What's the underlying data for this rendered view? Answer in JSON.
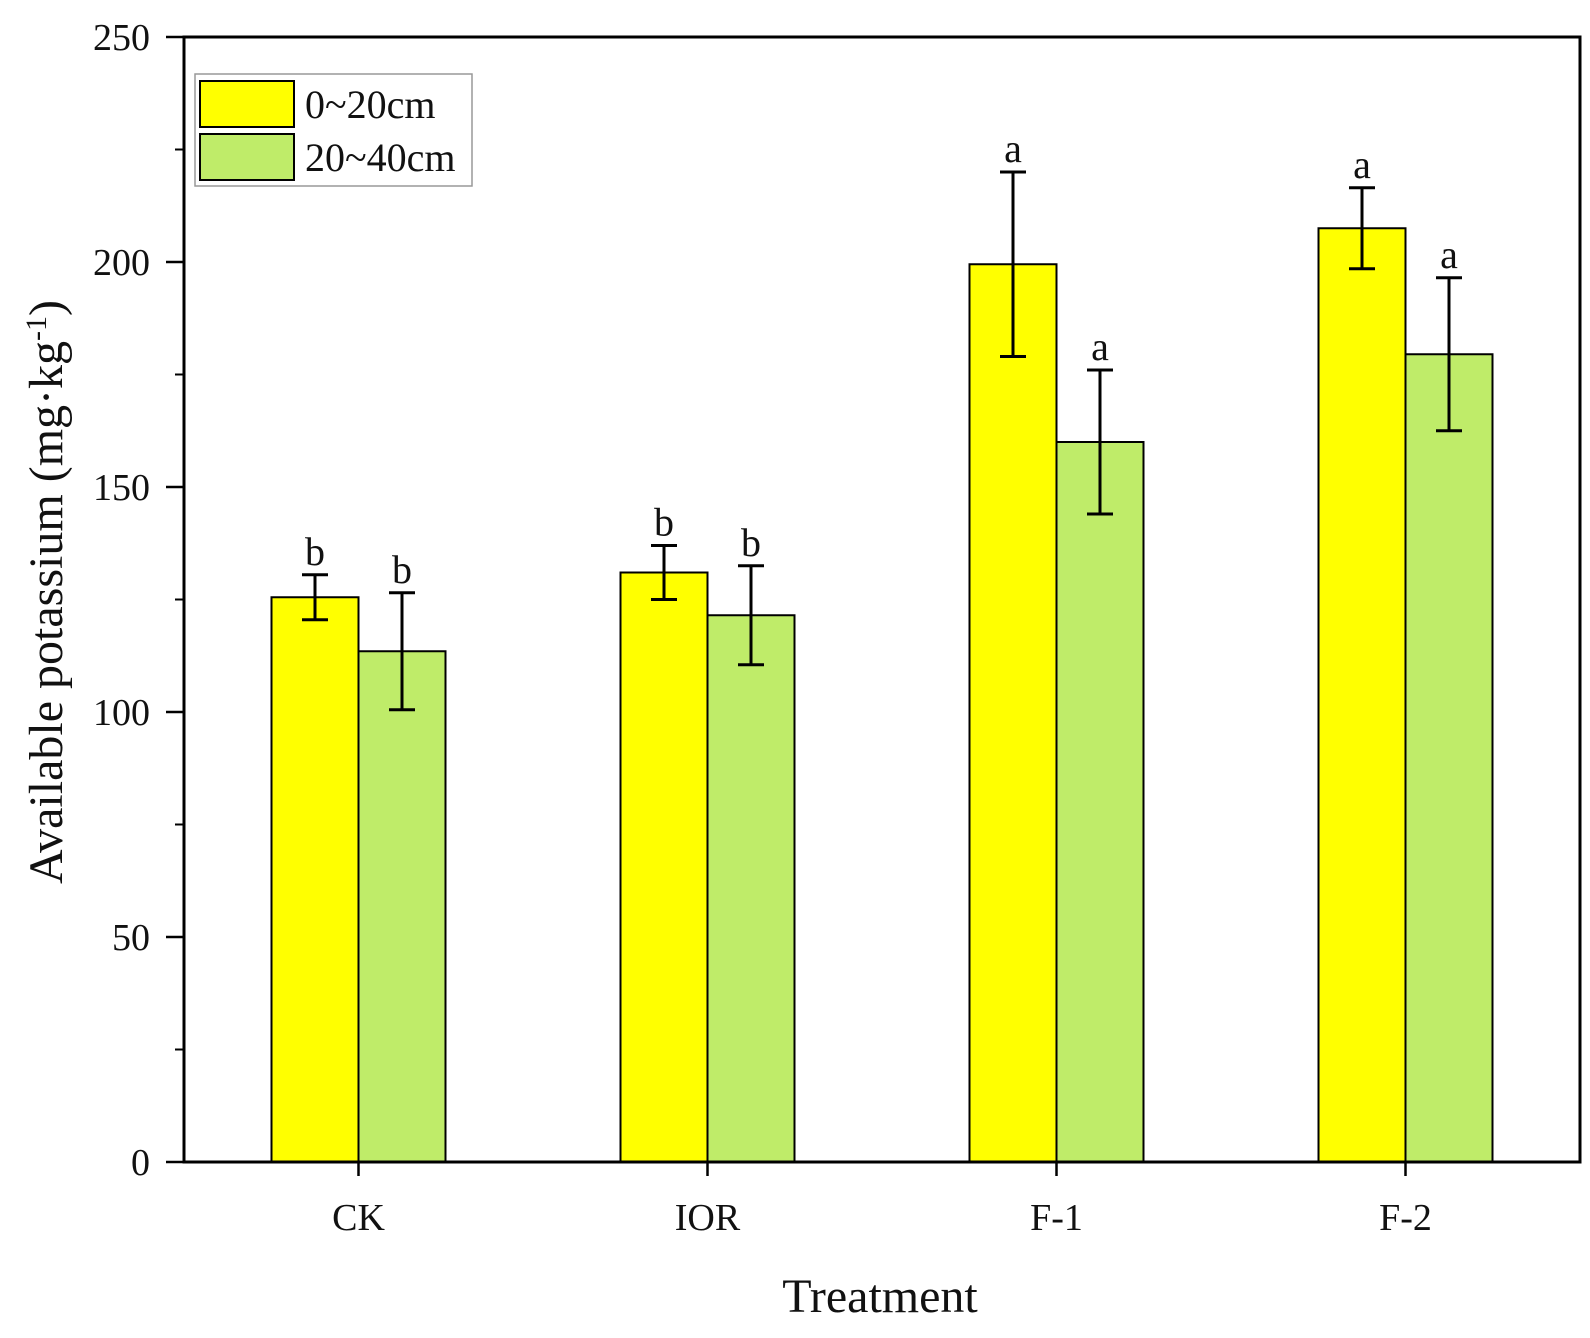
{
  "chart_data": {
    "type": "bar",
    "title": "",
    "xlabel": "Treatment",
    "ylabel_main": "Available potassium (mg·kg",
    "ylabel_sup": "-1",
    "ylabel_close": ")",
    "ylim": [
      0,
      250
    ],
    "yticks": [
      0,
      50,
      100,
      150,
      200,
      250
    ],
    "categories": [
      "CK",
      "IOR",
      "F-1",
      "F-2"
    ],
    "legend_position": "top-left",
    "series": [
      {
        "name": "0~20cm",
        "color": "#ffff00",
        "values": [
          125.5,
          131,
          199.5,
          207.5
        ],
        "errors": [
          5,
          6,
          20.5,
          9
        ],
        "significance": [
          "b",
          "b",
          "a",
          "a"
        ]
      },
      {
        "name": "20~40cm",
        "color": "#bfec69",
        "values": [
          113.5,
          121.5,
          160,
          179.5
        ],
        "errors": [
          13,
          11,
          16,
          17
        ],
        "significance": [
          "b",
          "b",
          "a",
          "a"
        ]
      }
    ]
  }
}
